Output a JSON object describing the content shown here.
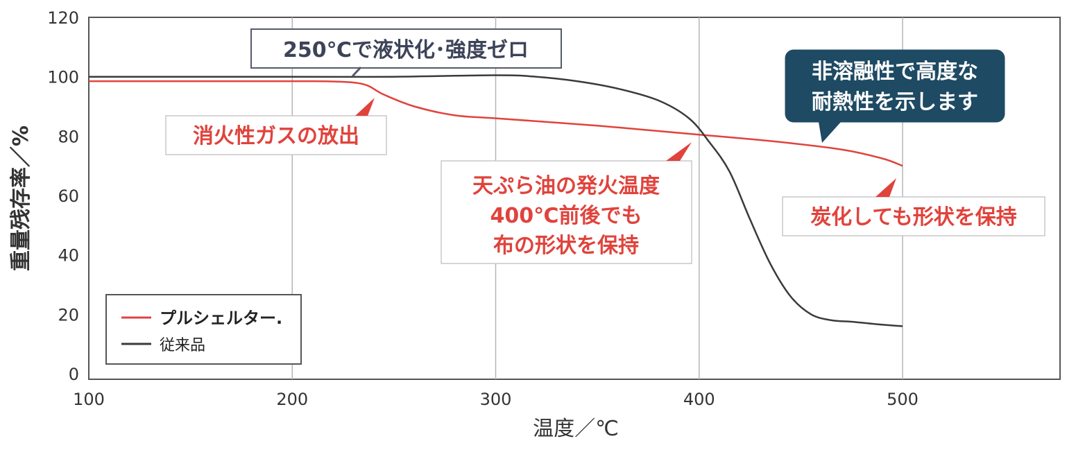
{
  "chart_data": {
    "type": "line",
    "xlabel": "温度／℃",
    "ylabel": "重量残存率／%",
    "xlim": [
      100,
      575
    ],
    "ylim": [
      0,
      120
    ],
    "xticks": [
      100,
      200,
      300,
      400,
      500
    ],
    "yticks": [
      0,
      20,
      40,
      60,
      80,
      100,
      120
    ],
    "grid": "vertical",
    "legend_position": "bottom-left",
    "series": [
      {
        "name": "プルシェルター.",
        "color": "#e0433c",
        "x": [
          100,
          150,
          200,
          220,
          235,
          245,
          260,
          280,
          300,
          350,
          400,
          440,
          470,
          490,
          500
        ],
        "y": [
          98.5,
          98.5,
          98.5,
          98.4,
          97.5,
          94,
          90,
          87,
          86,
          83.5,
          80.5,
          78,
          75.5,
          72.5,
          70
        ]
      },
      {
        "name": "従来品",
        "color": "#3a3a3a",
        "x": [
          100,
          200,
          250,
          300,
          320,
          340,
          360,
          380,
          395,
          405,
          415,
          425,
          435,
          445,
          455,
          465,
          475,
          490,
          500
        ],
        "y": [
          100,
          100,
          100,
          100.5,
          100,
          98.5,
          96,
          92,
          86,
          78,
          68,
          52,
          37,
          26,
          20,
          18,
          17.5,
          16.5,
          16
        ]
      }
    ],
    "annotations": [
      {
        "text": "250℃で液状化･強度ゼロ",
        "style": "outlined"
      },
      {
        "text": "消火性ガスの放出",
        "style": "red"
      },
      {
        "lines": [
          "天ぷら油の発火温度",
          "400℃前後でも",
          "布の形状を保持"
        ],
        "style": "red"
      },
      {
        "lines": [
          "非溶融性で高度な",
          "耐熱性を示します"
        ],
        "style": "dark"
      },
      {
        "text": "炭化しても形状を保持",
        "style": "red"
      }
    ]
  }
}
